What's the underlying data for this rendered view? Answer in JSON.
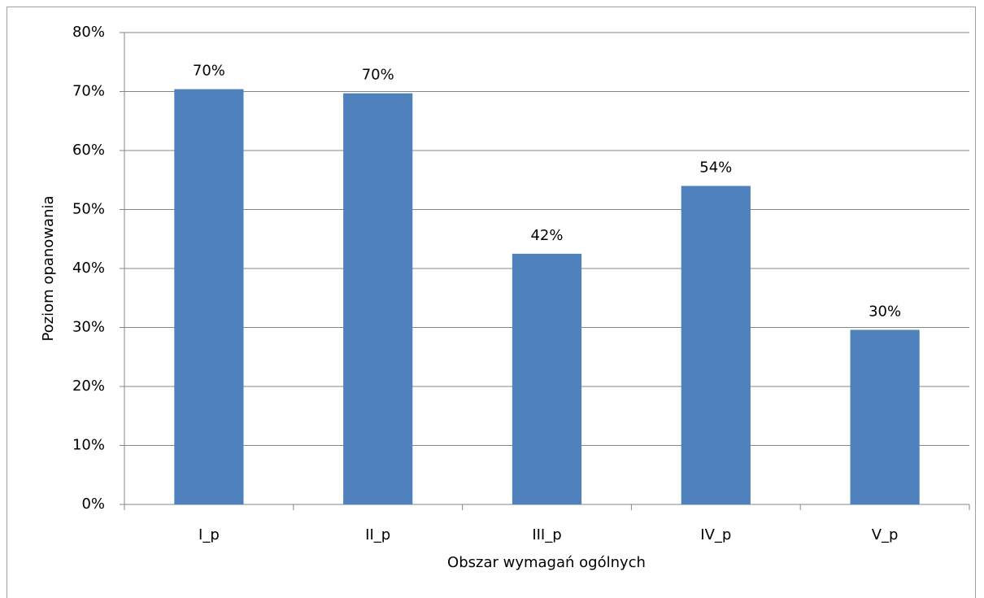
{
  "chart_data": {
    "type": "bar",
    "x_label": "Obszar wymagań ogólnych",
    "y_label": "Poziom opanowania",
    "categories": [
      "I_p",
      "II_p",
      "III_p",
      "IV_p",
      "V_p"
    ],
    "values": [
      70.4,
      69.7,
      42.5,
      54.0,
      29.6
    ],
    "value_labels": [
      "70%",
      "70%",
      "42%",
      "54%",
      "30%"
    ],
    "color": "#4f81bd",
    "ylim": [
      0,
      80
    ],
    "yticks": [
      {
        "value": 0,
        "label": "0%"
      },
      {
        "value": 10,
        "label": "10%"
      },
      {
        "value": 20,
        "label": "20%"
      },
      {
        "value": 30,
        "label": "30%"
      },
      {
        "value": 40,
        "label": "40%"
      },
      {
        "value": 50,
        "label": "50%"
      },
      {
        "value": 60,
        "label": "60%"
      },
      {
        "value": 70,
        "label": "70%"
      },
      {
        "value": 80,
        "label": "80%"
      }
    ],
    "grid": true
  }
}
